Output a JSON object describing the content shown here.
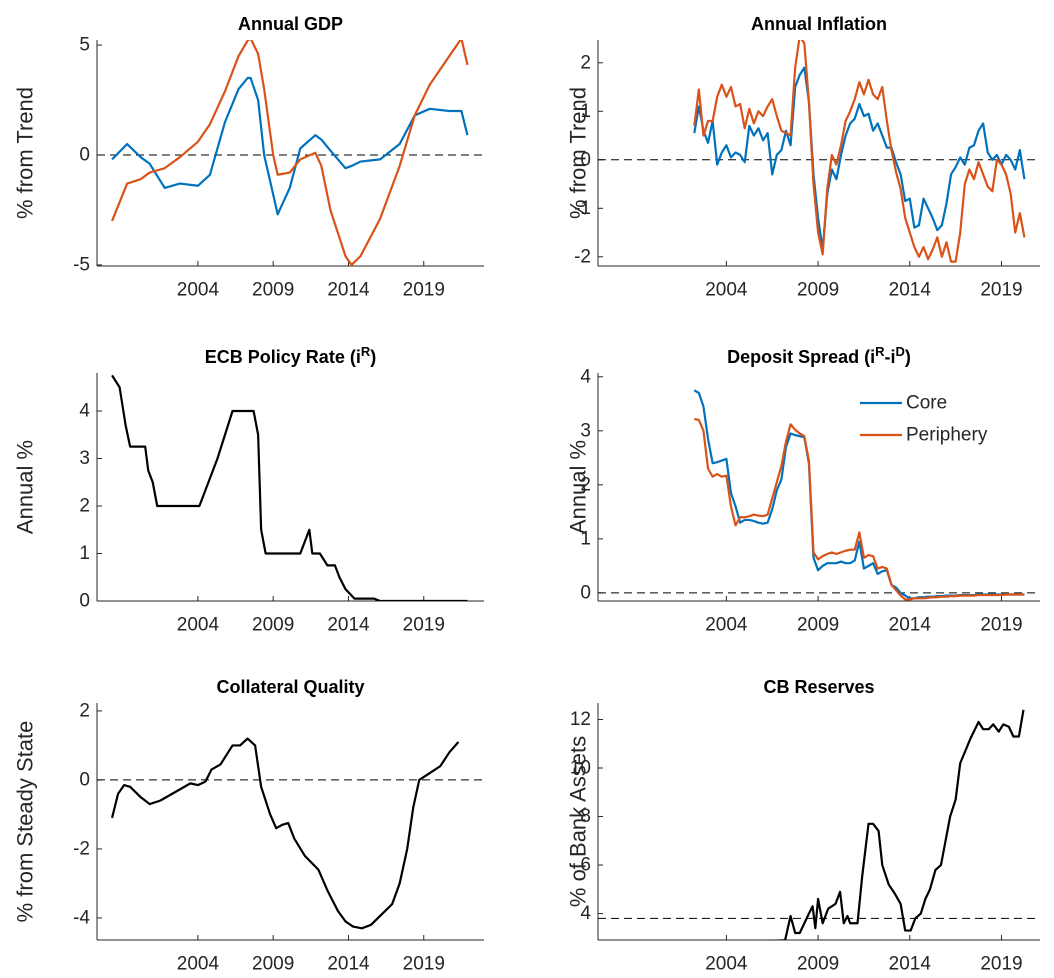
{
  "chart_data": [
    {
      "type": "line",
      "title": "Annual GDP",
      "y_label": "% from Trend",
      "x": [
        1998.3,
        1999.3,
        2000.2,
        2000.8,
        2001.8,
        2002.8,
        2004.0,
        2004.8,
        2005.8,
        2006.7,
        2007.3,
        2007.5,
        2008.0,
        2008.4,
        2009.0,
        2009.3,
        2010.1,
        2010.8,
        2011.8,
        2012.2,
        2012.8,
        2013.8,
        2014.2,
        2014.8,
        2016.1,
        2017.4,
        2018.4,
        2019.4,
        2020.7,
        2021.5,
        2021.9
      ],
      "series": [
        {
          "name": "Core",
          "color": "#0072BD",
          "values": [
            -0.2,
            0.5,
            -0.1,
            -0.4,
            -1.5,
            -1.3,
            -1.4,
            -0.9,
            1.5,
            3.0,
            3.5,
            3.5,
            2.5,
            0.0,
            -1.8,
            -2.7,
            -1.5,
            0.3,
            0.9,
            0.7,
            0.2,
            -0.6,
            -0.5,
            -0.3,
            -0.2,
            0.5,
            1.8,
            2.1,
            2.0,
            2.0,
            0.9
          ]
        },
        {
          "name": "Periphery",
          "color": "#D95319",
          "values": [
            -3.0,
            -1.3,
            -1.1,
            -0.8,
            -0.6,
            -0.1,
            0.6,
            1.4,
            2.9,
            4.5,
            5.2,
            5.3,
            4.6,
            3.0,
            0.0,
            -0.9,
            -0.8,
            -0.2,
            0.1,
            -0.5,
            -2.5,
            -4.6,
            -5.0,
            -4.6,
            -2.9,
            -0.5,
            1.8,
            3.2,
            4.5,
            5.3,
            4.1
          ]
        }
      ],
      "xlim": [
        1997.3,
        2023.0
      ],
      "xticks": [
        2004,
        2009,
        2014,
        2019
      ],
      "ylim": [
        -5.05,
        5.23
      ],
      "yticks": [
        -5,
        0,
        5
      ],
      "hline": 0
    },
    {
      "type": "line",
      "title": "Annual Inflation",
      "y_label": "% from Trend",
      "x": [
        2002.25,
        2002.5,
        2002.75,
        2003.0,
        2003.25,
        2003.5,
        2003.75,
        2004.0,
        2004.25,
        2004.5,
        2004.75,
        2005.0,
        2005.25,
        2005.5,
        2005.75,
        2006.0,
        2006.25,
        2006.5,
        2006.75,
        2007.0,
        2007.25,
        2007.5,
        2007.75,
        2008.0,
        2008.25,
        2008.5,
        2008.75,
        2009.0,
        2009.25,
        2009.5,
        2009.75,
        2010.0,
        2010.25,
        2010.5,
        2010.75,
        2011.0,
        2011.25,
        2011.5,
        2011.75,
        2012.0,
        2012.25,
        2012.5,
        2012.75,
        2013.0,
        2013.25,
        2013.5,
        2013.75,
        2014.0,
        2014.25,
        2014.5,
        2014.75,
        2015.0,
        2015.25,
        2015.5,
        2015.75,
        2016.0,
        2016.25,
        2016.5,
        2016.75,
        2017.0,
        2017.25,
        2017.5,
        2017.75,
        2018.0,
        2018.25,
        2018.5,
        2018.75,
        2019.0,
        2019.25,
        2019.5,
        2019.75,
        2020.0,
        2020.25
      ],
      "series": [
        {
          "name": "Core",
          "color": "#0072BD",
          "values": [
            0.55,
            1.1,
            0.6,
            0.35,
            0.8,
            -0.1,
            0.15,
            0.3,
            0.05,
            0.15,
            0.1,
            -0.05,
            0.7,
            0.5,
            0.65,
            0.4,
            0.55,
            -0.3,
            0.1,
            0.2,
            0.6,
            0.3,
            1.5,
            1.75,
            1.9,
            1.2,
            -0.3,
            -1.2,
            -1.85,
            -0.7,
            -0.2,
            -0.4,
            0.1,
            0.5,
            0.75,
            0.85,
            1.15,
            0.9,
            0.95,
            0.6,
            0.75,
            0.5,
            0.25,
            0.25,
            -0.05,
            -0.3,
            -0.85,
            -0.8,
            -1.4,
            -1.35,
            -0.8,
            -1.0,
            -1.2,
            -1.45,
            -1.35,
            -0.9,
            -0.3,
            -0.15,
            0.05,
            -0.1,
            0.25,
            0.3,
            0.6,
            0.75,
            0.15,
            0.0,
            0.1,
            -0.1,
            0.1,
            0.0,
            -0.2,
            0.2,
            -0.4
          ]
        },
        {
          "name": "Periphery",
          "color": "#D95319",
          "values": [
            0.7,
            1.45,
            0.5,
            0.8,
            0.8,
            1.3,
            1.55,
            1.3,
            1.5,
            1.1,
            1.15,
            0.65,
            1.05,
            0.75,
            1.0,
            0.9,
            1.1,
            1.25,
            0.9,
            0.6,
            0.55,
            0.5,
            1.9,
            2.55,
            2.4,
            1.2,
            -0.5,
            -1.5,
            -1.95,
            -0.6,
            0.1,
            -0.1,
            0.3,
            0.8,
            1.0,
            1.25,
            1.6,
            1.35,
            1.65,
            1.35,
            1.25,
            1.5,
            0.8,
            0.2,
            -0.25,
            -0.6,
            -1.2,
            -1.5,
            -1.8,
            -2.0,
            -1.8,
            -2.05,
            -1.85,
            -1.6,
            -2.0,
            -1.7,
            -2.1,
            -2.1,
            -1.5,
            -0.5,
            -0.2,
            -0.4,
            -0.05,
            -0.3,
            -0.55,
            -0.65,
            0.0,
            -0.1,
            -0.3,
            -0.7,
            -1.5,
            -1.1,
            -1.6
          ]
        }
      ],
      "xlim": [
        1997.0,
        2021.1
      ],
      "xticks": [
        2004,
        2009,
        2014,
        2019
      ],
      "ylim": [
        -2.19,
        2.47
      ],
      "yticks": [
        -2,
        -1,
        0,
        1,
        2
      ],
      "hline": 0
    },
    {
      "type": "line",
      "title": [
        "ECB Policy Rate (i",
        "R",
        ")"
      ],
      "y_label": "Annual %",
      "x": [
        1998.3,
        1998.8,
        1999.2,
        1999.5,
        2000.5,
        2000.7,
        2001.0,
        2001.3,
        2004.1,
        2005.3,
        2005.8,
        2006.3,
        2007.7,
        2008.0,
        2008.2,
        2008.5,
        2010.8,
        2011.4,
        2011.6,
        2012.1,
        2012.6,
        2013.1,
        2013.4,
        2013.8,
        2014.1,
        2014.4,
        2015.7,
        2016.1,
        2021.9
      ],
      "values": [
        4.75,
        4.5,
        3.7,
        3.25,
        3.25,
        2.75,
        2.5,
        2.0,
        2.0,
        3.0,
        3.5,
        4.0,
        4.0,
        3.5,
        1.5,
        1.0,
        1.0,
        1.5,
        1.0,
        1.0,
        0.75,
        0.75,
        0.5,
        0.25,
        0.15,
        0.05,
        0.05,
        0,
        0
      ],
      "color": "#000000",
      "xlim": [
        1997.3,
        2023.0
      ],
      "xticks": [
        2004,
        2009,
        2014,
        2019
      ],
      "ylim": [
        0,
        4.8
      ],
      "yticks": [
        0,
        1,
        2,
        3,
        4
      ]
    },
    {
      "type": "line",
      "title": [
        "Deposit Spread (i",
        "R",
        "-i",
        "D",
        ")"
      ],
      "y_label": "Annual %",
      "x": [
        2002.25,
        2002.5,
        2002.75,
        2003.0,
        2003.25,
        2003.5,
        2003.75,
        2004.0,
        2004.25,
        2004.5,
        2004.75,
        2005.0,
        2005.25,
        2005.5,
        2005.75,
        2006.0,
        2006.25,
        2006.5,
        2006.75,
        2007.0,
        2007.25,
        2007.5,
        2007.75,
        2008.0,
        2008.25,
        2008.5,
        2008.75,
        2009.0,
        2009.25,
        2009.5,
        2009.75,
        2010.0,
        2010.25,
        2010.5,
        2010.75,
        2011.0,
        2011.25,
        2011.5,
        2011.75,
        2012.0,
        2012.25,
        2012.5,
        2012.75,
        2013.0,
        2013.25,
        2013.5,
        2013.75,
        2014.0,
        2014.25,
        2014.5,
        2014.75,
        2015.0,
        2015.25,
        2015.5,
        2015.75,
        2016.0,
        2016.25,
        2016.5,
        2016.75,
        2017.0,
        2017.25,
        2017.5,
        2017.75,
        2018.0,
        2018.25,
        2018.5,
        2018.75,
        2019.0,
        2019.25,
        2019.5,
        2019.75,
        2020.0,
        2020.25
      ],
      "series": [
        {
          "name": "Core",
          "color": "#0072BD",
          "values": [
            3.75,
            3.7,
            3.45,
            2.85,
            2.4,
            2.42,
            2.45,
            2.48,
            1.85,
            1.6,
            1.3,
            1.35,
            1.35,
            1.33,
            1.3,
            1.28,
            1.3,
            1.55,
            1.9,
            2.1,
            2.7,
            2.95,
            2.92,
            2.9,
            2.88,
            2.4,
            0.65,
            0.42,
            0.5,
            0.55,
            0.55,
            0.55,
            0.58,
            0.55,
            0.55,
            0.6,
            0.95,
            0.45,
            0.5,
            0.55,
            0.35,
            0.4,
            0.42,
            0.15,
            0.1,
            0.0,
            -0.05,
            -0.1,
            -0.1,
            -0.08,
            -0.08,
            -0.07,
            -0.07,
            -0.06,
            -0.06,
            -0.05,
            -0.05,
            -0.05,
            -0.04,
            -0.04,
            -0.04,
            -0.04,
            -0.03,
            -0.03,
            -0.03,
            -0.03,
            -0.03,
            -0.03,
            -0.03,
            -0.03,
            -0.03,
            -0.03,
            -0.03
          ]
        },
        {
          "name": "Periphery",
          "color": "#D95319",
          "values": [
            3.22,
            3.2,
            3.0,
            2.3,
            2.15,
            2.2,
            2.15,
            2.17,
            1.6,
            1.25,
            1.4,
            1.4,
            1.42,
            1.45,
            1.43,
            1.42,
            1.45,
            1.75,
            2.05,
            2.35,
            2.8,
            3.12,
            3.02,
            2.95,
            2.9,
            2.45,
            0.75,
            0.62,
            0.68,
            0.72,
            0.75,
            0.72,
            0.75,
            0.78,
            0.8,
            0.8,
            1.12,
            0.65,
            0.7,
            0.68,
            0.45,
            0.48,
            0.45,
            0.15,
            0.05,
            -0.05,
            -0.12,
            -0.12,
            -0.1,
            -0.1,
            -0.1,
            -0.09,
            -0.08,
            -0.08,
            -0.07,
            -0.07,
            -0.06,
            -0.06,
            -0.05,
            -0.05,
            -0.05,
            -0.05,
            -0.04,
            -0.04,
            -0.04,
            -0.04,
            -0.04,
            -0.04,
            -0.03,
            -0.03,
            -0.03,
            -0.03,
            -0.03
          ]
        }
      ],
      "xlim": [
        1997.0,
        2021.1
      ],
      "xticks": [
        2004,
        2009,
        2014,
        2019
      ],
      "ylim": [
        -0.15,
        4.07
      ],
      "yticks": [
        0,
        1,
        2,
        3,
        4
      ],
      "hline": 0,
      "legend": "northeast"
    },
    {
      "type": "line",
      "title": "Collateral Quality",
      "y_label": "% from Steady State",
      "x": [
        1998.3,
        1998.7,
        1999.1,
        1999.5,
        2000.2,
        2000.8,
        2001.5,
        2002.5,
        2003.5,
        2004.0,
        2004.5,
        2004.9,
        2005.5,
        2006.3,
        2006.8,
        2007.3,
        2007.8,
        2008.2,
        2008.8,
        2009.2,
        2009.6,
        2010.0,
        2010.4,
        2011.1,
        2012.0,
        2012.6,
        2013.3,
        2013.8,
        2014.3,
        2014.9,
        2015.5,
        2016.2,
        2016.9,
        2017.4,
        2017.9,
        2018.3,
        2018.7,
        2019.4,
        2020.1,
        2020.7,
        2021.3
      ],
      "values": [
        -1.1,
        -0.4,
        -0.15,
        -0.2,
        -0.5,
        -0.7,
        -0.6,
        -0.35,
        -0.1,
        -0.15,
        -0.05,
        0.3,
        0.45,
        1.0,
        1.0,
        1.2,
        1.0,
        -0.2,
        -1.0,
        -1.4,
        -1.3,
        -1.25,
        -1.7,
        -2.2,
        -2.6,
        -3.2,
        -3.8,
        -4.1,
        -4.25,
        -4.3,
        -4.2,
        -3.9,
        -3.6,
        -3.0,
        -2.0,
        -0.8,
        0.0,
        0.2,
        0.4,
        0.8,
        1.1
      ],
      "color": "#000000",
      "xlim": [
        1997.3,
        2023.0
      ],
      "xticks": [
        2004,
        2009,
        2014,
        2019
      ],
      "ylim": [
        -4.64,
        2.23
      ],
      "yticks": [
        -4,
        -2,
        0,
        2
      ],
      "hline": 0
    },
    {
      "type": "line",
      "title": "CB Reserves",
      "y_label": "% of Bank Assets",
      "x": [
        1997.6,
        1998.2,
        1998.65,
        1999.0,
        1999.85,
        2000.95,
        2002.0,
        2003.7,
        2005.85,
        2007.2,
        2007.5,
        2007.75,
        2008.0,
        2008.5,
        2008.7,
        2008.85,
        2009.0,
        2009.25,
        2009.55,
        2009.95,
        2010.2,
        2010.4,
        2010.6,
        2010.75,
        2011.15,
        2011.4,
        2011.75,
        2012.0,
        2012.3,
        2012.5,
        2012.85,
        2013.2,
        2013.5,
        2013.75,
        2014.05,
        2014.3,
        2014.6,
        2014.85,
        2015.1,
        2015.4,
        2015.7,
        2015.95,
        2016.2,
        2016.5,
        2016.75,
        2017.3,
        2017.75,
        2018.0,
        2018.3,
        2018.55,
        2018.85,
        2019.1,
        2019.4,
        2019.65,
        2019.95,
        2020.2
      ],
      "values": [
        2.7,
        2.65,
        2.85,
        2.7,
        2.7,
        2.7,
        2.75,
        2.75,
        2.85,
        2.9,
        3.9,
        3.2,
        3.2,
        4.0,
        4.3,
        3.4,
        4.6,
        3.6,
        4.2,
        4.4,
        4.9,
        3.6,
        3.9,
        3.6,
        3.6,
        5.5,
        7.7,
        7.7,
        7.4,
        6.0,
        5.2,
        4.8,
        4.4,
        3.3,
        3.3,
        3.8,
        4.0,
        4.6,
        5.0,
        5.8,
        6.0,
        7.0,
        8.0,
        8.7,
        10.2,
        11.2,
        11.9,
        11.6,
        11.6,
        11.8,
        11.5,
        11.8,
        11.7,
        11.3,
        11.3,
        12.4
      ],
      "color": "#000000",
      "xlim": [
        1997.0,
        2021.1
      ],
      "xticks": [
        2004,
        2009,
        2014,
        2019
      ],
      "ylim": [
        2.91,
        12.68
      ],
      "yticks": [
        4,
        6,
        8,
        10,
        12
      ],
      "hline": 3.8
    }
  ]
}
